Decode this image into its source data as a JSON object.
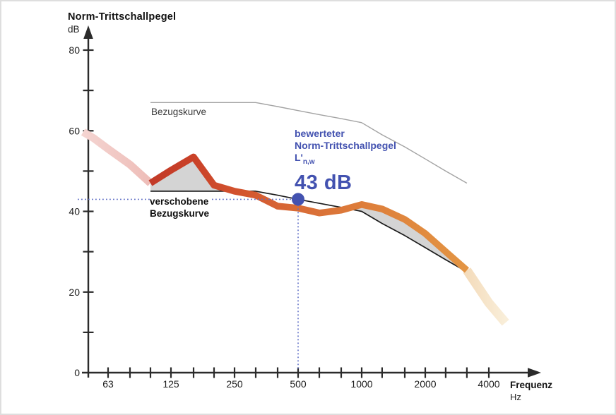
{
  "colors": {
    "axis": "#2b2b2b",
    "tick_label": "#1d1d1d",
    "blue": "#4352b0",
    "dotted_blue": "#6170c6",
    "reference_gray": "#a3a3a3",
    "shifted_black": "#1b1b1b",
    "fill_gray": "#d4d4d4",
    "measured_gradient": [
      [
        0,
        "#c23a28"
      ],
      [
        0.13,
        "#c94128"
      ],
      [
        0.27,
        "#d2522e"
      ],
      [
        0.45,
        "#d86a36"
      ],
      [
        0.65,
        "#dd7c3a"
      ],
      [
        0.82,
        "#e0883e"
      ],
      [
        1,
        "#e39544"
      ]
    ],
    "faded_start_gradient": [
      [
        0,
        "#f4d4d1"
      ],
      [
        1,
        "#eebdb8"
      ]
    ],
    "faded_end_gradient": [
      [
        0,
        "#f4dcbc"
      ],
      [
        1,
        "#f9eed9"
      ]
    ]
  },
  "axes": {
    "y_title": "Norm-Trittschallpegel",
    "y_unit": "dB",
    "x_title": "Frequenz",
    "x_unit": "Hz",
    "y_tick_labels": [
      {
        "value": 80,
        "label": "80"
      },
      {
        "value": 60,
        "label": "60"
      },
      {
        "value": 40,
        "label": "40"
      },
      {
        "value": 20,
        "label": "20"
      },
      {
        "value": 0,
        "label": "0"
      }
    ],
    "y_minor_ticks": [
      10,
      20,
      30,
      40,
      50,
      60,
      70,
      80
    ],
    "x_tick_labels": [
      {
        "value": 63,
        "label": "63"
      },
      {
        "value": 125,
        "label": "125"
      },
      {
        "value": 250,
        "label": "250"
      },
      {
        "value": 500,
        "label": "500"
      },
      {
        "value": 1000,
        "label": "1000"
      },
      {
        "value": 2000,
        "label": "2000"
      },
      {
        "value": 4000,
        "label": "4000"
      }
    ],
    "x_minor_ticks": [
      63,
      80,
      100,
      125,
      160,
      200,
      250,
      315,
      400,
      500,
      630,
      800,
      1000,
      1250,
      1600,
      2000,
      2500,
      3150,
      4000
    ]
  },
  "labels": {
    "reference_curve": "Bezugskurve",
    "shifted_reference_line1": "verschobene",
    "shifted_reference_line2": "Bezugskurve"
  },
  "annotation": {
    "line1": "bewerteter",
    "line2": "Norm-Trittschallpegel",
    "symbol_main": "L'",
    "symbol_sub": "n,w",
    "value": "43 dB"
  },
  "chart_data": {
    "type": "line",
    "xlabel": "Frequenz (Hz)",
    "ylabel": "Norm-Trittschallpegel (dB)",
    "x_scale": "logarithmic-octave",
    "ylim": [
      0,
      84
    ],
    "grid": false,
    "curves": {
      "bezugskurve": {
        "label": "Bezugskurve",
        "points": [
          [
            100,
            67
          ],
          [
            125,
            67
          ],
          [
            160,
            67
          ],
          [
            200,
            67
          ],
          [
            250,
            67
          ],
          [
            315,
            67
          ],
          [
            400,
            66
          ],
          [
            500,
            65
          ],
          [
            630,
            64
          ],
          [
            800,
            63
          ],
          [
            1000,
            62
          ],
          [
            1250,
            59
          ],
          [
            1600,
            56
          ],
          [
            2000,
            53
          ],
          [
            2500,
            50
          ],
          [
            3150,
            47
          ]
        ]
      },
      "verschobene_bezugskurve": {
        "label": "verschobene Bezugskurve",
        "points": [
          [
            100,
            45
          ],
          [
            125,
            45
          ],
          [
            160,
            45
          ],
          [
            200,
            45
          ],
          [
            250,
            45
          ],
          [
            315,
            45
          ],
          [
            400,
            44
          ],
          [
            500,
            43
          ],
          [
            630,
            42
          ],
          [
            800,
            41
          ],
          [
            1000,
            40
          ],
          [
            1250,
            37
          ],
          [
            1600,
            34
          ],
          [
            2000,
            31
          ],
          [
            2500,
            28
          ],
          [
            3150,
            25
          ]
        ]
      },
      "messkurve": {
        "points_faded_start": [
          [
            48,
            59.7
          ],
          [
            54,
            58.1
          ],
          [
            63,
            55.5
          ],
          [
            80,
            51.6
          ],
          [
            100,
            47
          ]
        ],
        "points_main": [
          [
            100,
            47
          ],
          [
            125,
            50.2
          ],
          [
            160,
            53.5
          ],
          [
            200,
            46.5
          ],
          [
            250,
            45
          ],
          [
            315,
            44
          ],
          [
            400,
            41.3
          ],
          [
            500,
            40.8
          ],
          [
            630,
            39.6
          ],
          [
            800,
            40.3
          ],
          [
            1000,
            41.7
          ],
          [
            1250,
            40.6
          ],
          [
            1600,
            38
          ],
          [
            2000,
            34.5
          ],
          [
            2500,
            30
          ],
          [
            3150,
            25.4
          ]
        ],
        "points_faded_end": [
          [
            3150,
            25.4
          ],
          [
            4000,
            17.3
          ],
          [
            4800,
            12.4
          ]
        ]
      }
    },
    "deviation_fill_ranges": [
      [
        100,
        250
      ],
      [
        860,
        3150
      ]
    ],
    "marker": {
      "freq_hz": 500,
      "level_db": 43
    }
  }
}
